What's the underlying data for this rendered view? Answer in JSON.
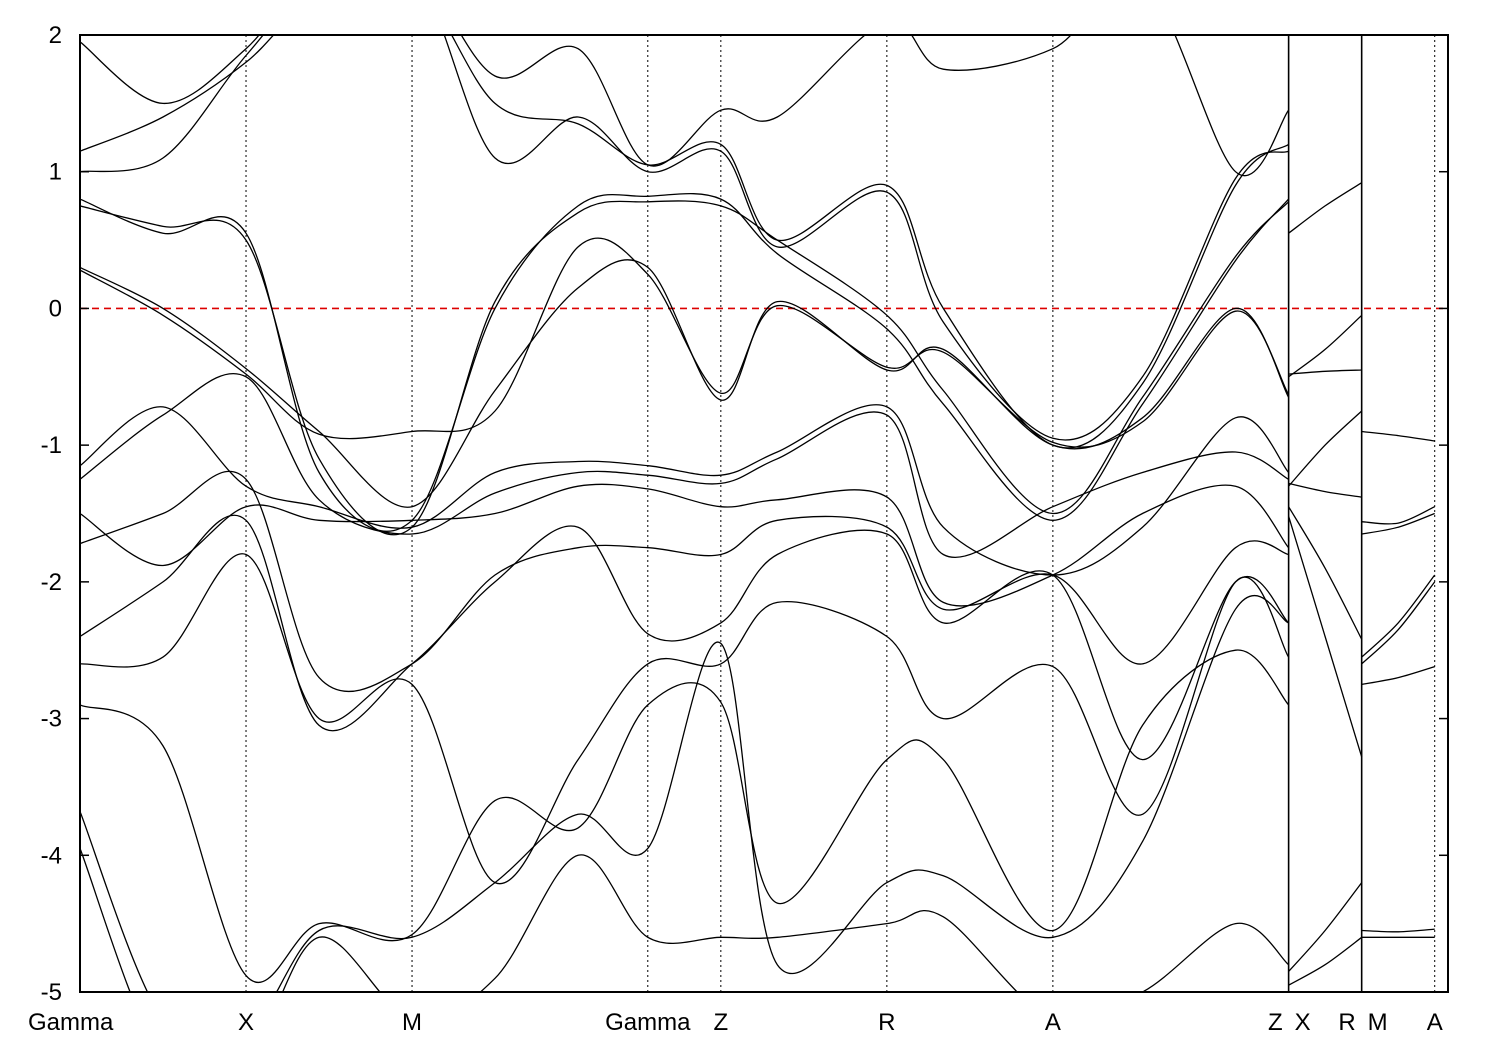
{
  "chart_data": {
    "type": "line",
    "title": "",
    "xlabel": "",
    "ylabel": "",
    "ylim": [
      -5,
      2
    ],
    "yticks": [
      -5,
      -4,
      -3,
      -2,
      -1,
      0,
      1,
      2
    ],
    "ytick_labels": [
      "-5",
      "-4",
      "-3",
      "-2",
      "-1",
      "0",
      "1",
      "2"
    ],
    "xlim": [
      0,
      4.12
    ],
    "kpoints": [
      {
        "label": "Gamma",
        "x": 0.0
      },
      {
        "label": "X",
        "x": 0.5
      },
      {
        "label": "M",
        "x": 1.0
      },
      {
        "label": "Gamma",
        "x": 1.71
      },
      {
        "label": "Z",
        "x": 1.93
      },
      {
        "label": "R",
        "x": 2.43
      },
      {
        "label": "A",
        "x": 2.93
      },
      {
        "label": "Z",
        "x": 3.64
      },
      {
        "label": "X",
        "x": 3.64
      },
      {
        "label": "R",
        "x": 3.86
      },
      {
        "label": "M",
        "x": 3.86
      },
      {
        "label": "A",
        "x": 4.08
      }
    ],
    "path_breaks": [
      3.64,
      3.86
    ],
    "fermi_level": 0,
    "grid": "vertical dotted lines at k-points",
    "legend": "none",
    "series": [
      {
        "x": [
          0,
          0.25,
          0.5,
          0.72,
          1.0,
          1.25,
          1.5,
          1.71,
          1.93,
          2.1,
          2.43,
          2.6,
          2.93,
          3.2,
          3.48,
          3.64
        ],
        "values": [
          0.3,
          0.0,
          -0.44,
          -0.9,
          -1.45,
          -0.6,
          0.15,
          0.3,
          -0.67,
          0.05,
          -0.45,
          -0.3,
          -1.0,
          -0.8,
          0.0,
          -0.65
        ]
      },
      {
        "x": [
          0,
          0.25,
          0.5,
          0.72,
          1.0,
          1.25,
          1.5,
          1.71,
          1.93,
          2.1,
          2.43,
          2.6,
          2.93,
          3.2,
          3.48,
          3.64
        ],
        "values": [
          0.28,
          -0.05,
          -0.48,
          -0.92,
          -0.9,
          -0.75,
          0.45,
          0.25,
          -0.62,
          0.02,
          -0.43,
          -0.32,
          -0.98,
          -0.83,
          -0.02,
          -0.63
        ]
      },
      {
        "x": [
          0,
          0.25,
          0.5,
          0.72,
          1.0,
          1.25,
          1.5,
          1.71,
          1.93,
          2.1,
          2.43,
          2.6,
          2.93,
          3.2,
          3.48,
          3.64
        ],
        "values": [
          0.8,
          0.55,
          0.55,
          -1.2,
          -1.55,
          0.0,
          0.75,
          0.82,
          0.8,
          0.4,
          -0.15,
          -0.7,
          -1.55,
          -0.7,
          0.35,
          0.8
        ]
      },
      {
        "x": [
          0,
          0.25,
          0.5,
          0.72,
          1.0,
          1.25,
          1.5,
          1.71,
          1.93,
          2.1,
          2.43,
          2.6,
          2.93,
          3.2,
          3.48,
          3.64
        ],
        "values": [
          0.75,
          0.6,
          0.5,
          -1.1,
          -1.6,
          0.05,
          0.7,
          0.78,
          0.75,
          0.5,
          -0.05,
          -0.6,
          -1.5,
          -0.65,
          0.38,
          0.78
        ]
      },
      {
        "x": [
          0,
          0.25,
          0.5,
          0.72,
          1.0,
          1.25,
          1.5,
          1.71,
          1.93,
          2.1,
          2.43,
          2.6,
          2.93,
          3.2,
          3.48,
          3.64
        ],
        "values": [
          -1.15,
          -0.72,
          -1.3,
          -1.45,
          -1.6,
          -1.2,
          -1.12,
          -1.15,
          -1.22,
          -1.05,
          -0.72,
          -1.6,
          -1.95,
          -1.6,
          -0.8,
          -1.2
        ]
      },
      {
        "x": [
          0,
          0.25,
          0.5,
          0.72,
          1.0,
          1.25,
          1.5,
          1.71,
          1.93,
          2.1,
          2.43,
          2.6,
          2.93,
          3.2,
          3.48,
          3.64
        ],
        "values": [
          -1.25,
          -0.78,
          -0.5,
          -1.4,
          -1.65,
          -1.35,
          -1.2,
          -1.22,
          -1.28,
          -1.1,
          -0.78,
          -1.8,
          -1.45,
          -1.2,
          -1.05,
          -1.25
        ]
      },
      {
        "x": [
          0,
          0.25,
          0.5,
          0.72,
          1.0,
          1.25,
          1.5,
          1.71,
          1.93,
          2.1,
          2.43,
          2.6,
          2.93,
          3.2,
          3.48,
          3.64
        ],
        "values": [
          -1.5,
          -1.88,
          -1.45,
          -1.55,
          -1.55,
          -1.5,
          -1.3,
          -1.32,
          -1.45,
          -1.4,
          -1.38,
          -2.15,
          -1.95,
          -1.5,
          -1.3,
          -1.75
        ]
      },
      {
        "x": [
          0,
          0.25,
          0.5,
          0.72,
          1.0,
          1.25,
          1.5,
          1.71,
          1.93,
          2.1,
          2.43,
          2.6,
          2.93,
          3.2,
          3.48,
          3.64
        ],
        "values": [
          -1.72,
          -1.5,
          -1.25,
          -2.7,
          -2.6,
          -1.95,
          -1.75,
          -1.75,
          -1.8,
          -1.55,
          -1.6,
          -2.2,
          -1.95,
          -2.6,
          -1.75,
          -1.8
        ]
      },
      {
        "x": [
          0,
          0.25,
          0.5,
          0.72,
          1.0,
          1.25,
          1.5,
          1.71,
          1.93,
          2.1,
          2.43,
          2.6,
          2.93,
          3.2,
          3.48,
          3.64
        ],
        "values": [
          -2.4,
          -2.0,
          -1.55,
          -3.05,
          -2.6,
          -2.0,
          -1.6,
          -2.38,
          -2.3,
          -1.8,
          -1.65,
          -2.3,
          -1.95,
          -3.3,
          -2.0,
          -2.3
        ]
      },
      {
        "x": [
          0,
          0.25,
          0.5,
          0.72,
          1.0,
          1.25,
          1.5,
          1.71,
          1.93,
          2.1,
          2.43,
          2.6,
          2.93,
          3.2,
          3.48,
          3.64
        ],
        "values": [
          -2.6,
          -2.55,
          -1.8,
          -3.0,
          -2.75,
          -4.2,
          -3.3,
          -2.6,
          -2.6,
          -2.15,
          -2.4,
          -3.0,
          -2.62,
          -3.7,
          -2.0,
          -2.55
        ]
      },
      {
        "x": [
          0,
          0.25,
          0.5,
          0.72,
          1.0,
          1.25,
          1.5,
          1.71,
          1.93,
          2.1,
          2.43,
          2.6,
          2.93,
          3.2,
          3.48,
          3.64
        ],
        "values": [
          -2.9,
          -3.2,
          -4.88,
          -4.5,
          -4.58,
          -3.6,
          -3.8,
          -2.9,
          -2.88,
          -4.35,
          -3.3,
          -3.3,
          -4.55,
          -3.05,
          -2.5,
          -2.9
        ]
      },
      {
        "x": [
          0,
          0.25,
          0.5,
          0.72,
          1.0,
          1.25,
          1.5,
          1.71,
          1.93,
          2.1,
          2.43,
          2.6,
          2.93,
          3.2,
          3.48,
          3.64
        ],
        "values": [
          -3.68,
          -5.2,
          -5.3,
          -4.55,
          -4.6,
          -4.2,
          -3.7,
          -3.95,
          -2.45,
          -4.8,
          -4.2,
          -4.15,
          -4.6,
          -3.9,
          -2.2,
          -2.3
        ]
      },
      {
        "x": [
          0,
          0.25,
          0.5,
          0.72,
          1.0,
          1.25,
          1.5,
          1.71,
          1.93,
          2.1,
          2.43,
          2.6,
          2.93,
          3.2,
          3.48,
          3.64
        ],
        "values": [
          -3.95,
          -5.5,
          -5.5,
          -4.6,
          -5.2,
          -4.9,
          -4.0,
          -4.6,
          -4.6,
          -4.6,
          -4.5,
          -4.45,
          -5.2,
          -5.0,
          -4.5,
          -4.8
        ]
      },
      {
        "x": [
          0,
          0.25,
          0.5,
          0.72,
          1.0,
          1.25,
          1.5,
          1.71,
          1.93,
          2.1,
          2.43,
          2.6,
          2.93,
          3.2,
          3.48,
          3.64
        ],
        "values": [
          1.15,
          1.4,
          1.8,
          2.3,
          2.4,
          1.5,
          1.35,
          1.05,
          1.2,
          0.5,
          0.9,
          0.0,
          -1.0,
          -0.55,
          0.9,
          1.2
        ]
      },
      {
        "x": [
          0,
          0.25,
          0.5,
          0.72,
          1.0,
          1.25,
          1.5,
          1.71,
          1.93,
          2.1,
          2.43,
          2.6,
          2.93,
          3.2,
          3.48,
          3.64
        ],
        "values": [
          1.0,
          1.1,
          1.85,
          2.4,
          2.5,
          1.1,
          1.4,
          1.0,
          1.15,
          0.45,
          0.85,
          -0.1,
          -0.95,
          -0.5,
          0.95,
          1.15
        ]
      },
      {
        "x": [
          0,
          0.25,
          0.5,
          0.72,
          1.0,
          1.25,
          1.5,
          1.71,
          1.93,
          2.1,
          2.43,
          2.6,
          2.93,
          3.2,
          3.48,
          3.64
        ],
        "values": [
          1.95,
          1.5,
          1.9,
          2.5,
          2.5,
          1.7,
          1.9,
          1.05,
          1.45,
          1.4,
          2.1,
          1.75,
          1.9,
          2.4,
          1.0,
          1.45
        ]
      },
      {
        "x": [
          3.64,
          3.75,
          3.86
        ],
        "values": [
          0.55,
          0.75,
          0.92
        ]
      },
      {
        "x": [
          3.64,
          3.75,
          3.86
        ],
        "values": [
          -0.5,
          -0.3,
          -0.05
        ]
      },
      {
        "x": [
          3.64,
          3.75,
          3.86
        ],
        "values": [
          -0.48,
          -0.46,
          -0.45
        ]
      },
      {
        "x": [
          3.64,
          3.75,
          3.86
        ],
        "values": [
          -1.3,
          -1.0,
          -0.75
        ]
      },
      {
        "x": [
          3.64,
          3.75,
          3.86
        ],
        "values": [
          -1.28,
          -1.34,
          -1.38
        ]
      },
      {
        "x": [
          3.64,
          3.75,
          3.86
        ],
        "values": [
          -1.45,
          -1.9,
          -2.42
        ]
      },
      {
        "x": [
          3.64,
          3.75,
          3.86
        ],
        "values": [
          -1.52,
          -2.4,
          -3.28
        ]
      },
      {
        "x": [
          3.64,
          3.75,
          3.86
        ],
        "values": [
          -4.85,
          -4.55,
          -4.2
        ]
      },
      {
        "x": [
          3.64,
          3.75,
          3.86
        ],
        "values": [
          -4.95,
          -4.8,
          -4.6
        ]
      },
      {
        "x": [
          3.86,
          3.97,
          4.08
        ],
        "values": [
          -0.9,
          -0.93,
          -0.97
        ]
      },
      {
        "x": [
          3.86,
          3.97,
          4.08
        ],
        "values": [
          -1.56,
          -1.57,
          -1.45
        ]
      },
      {
        "x": [
          3.86,
          3.97,
          4.08
        ],
        "values": [
          -1.65,
          -1.6,
          -1.5
        ]
      },
      {
        "x": [
          3.86,
          3.97,
          4.08
        ],
        "values": [
          -2.55,
          -2.3,
          -1.95
        ]
      },
      {
        "x": [
          3.86,
          3.97,
          4.08
        ],
        "values": [
          -2.6,
          -2.35,
          -2.0
        ]
      },
      {
        "x": [
          3.86,
          3.97,
          4.08
        ],
        "values": [
          -2.75,
          -2.7,
          -2.62
        ]
      },
      {
        "x": [
          3.86,
          3.97,
          4.08
        ],
        "values": [
          -4.55,
          -4.56,
          -4.54
        ]
      },
      {
        "x": [
          3.86,
          3.97,
          4.08
        ],
        "values": [
          -4.6,
          -4.6,
          -4.6
        ]
      }
    ]
  }
}
